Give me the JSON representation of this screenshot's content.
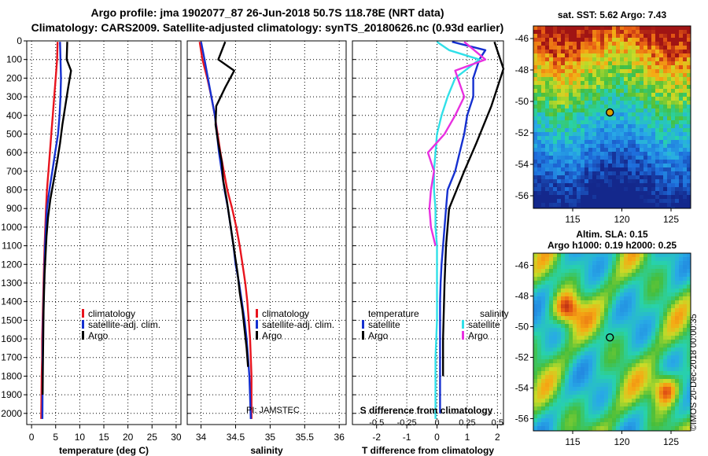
{
  "header": {
    "title_line1": "Argo profile: jma 1902077_87 26-Jun-2018 50.7S 118.78E (NRT data)",
    "title_line2": "Climatology: CARS2009. Satellite-adjusted climatology: synTS_20180626.nc (0.93d earlier)"
  },
  "credit": {
    "pi": "PI: JAMSTEC",
    "imos": "©IMOS 20-Dec-2018 00:00:35"
  },
  "colors": {
    "climatology": "#e8141e",
    "satellite_adj": "#1530d0",
    "argo": "#000000",
    "satellite_s": "#30e0e8",
    "argo_s": "#e830e0"
  },
  "chart_data": [
    {
      "type": "line",
      "id": "temperature",
      "xlabel": "temperature (deg C)",
      "ylabel": "",
      "xlim": [
        -1,
        31
      ],
      "ylim": [
        2060,
        0
      ],
      "xticks": [
        "0",
        "5",
        "10",
        "15",
        "20",
        "25",
        "30"
      ],
      "xtick_values": [
        0,
        5,
        10,
        15,
        20,
        25,
        30
      ],
      "yticks": [
        0,
        100,
        200,
        300,
        400,
        500,
        600,
        700,
        800,
        900,
        1000,
        1100,
        1200,
        1300,
        1400,
        1500,
        1600,
        1700,
        1800,
        1900,
        2000
      ],
      "grid": true,
      "legend_position": "bottom-right",
      "series": [
        {
          "name": "climatology",
          "color_key": "climatology",
          "x": [
            5.4,
            5.3,
            5.0,
            4.7,
            4.4,
            4.1,
            3.8,
            3.5,
            3.2,
            3.0,
            2.85,
            2.7,
            2.6,
            2.5,
            2.4,
            2.3,
            2.2,
            2.2,
            2.1,
            2.0
          ],
          "y": [
            5,
            100,
            200,
            300,
            400,
            500,
            600,
            700,
            800,
            900,
            1000,
            1100,
            1200,
            1300,
            1400,
            1500,
            1600,
            1700,
            1800,
            2030
          ]
        },
        {
          "name": "satellite-adj. clim.",
          "color_key": "satellite_adj",
          "x": [
            5.9,
            6.0,
            6.1,
            6.0,
            5.8,
            5.5,
            4.9,
            4.3,
            3.7,
            3.2,
            3.0,
            2.8,
            2.7,
            2.6,
            2.5,
            2.4,
            2.35,
            2.3,
            2.3,
            2.25
          ],
          "y": [
            5,
            100,
            200,
            300,
            400,
            500,
            600,
            700,
            800,
            900,
            1000,
            1100,
            1200,
            1300,
            1400,
            1500,
            1600,
            1700,
            1800,
            2030
          ]
        },
        {
          "name": "Argo",
          "color_key": "argo",
          "x": [
            7.4,
            7.3,
            8.2,
            7.6,
            7.0,
            6.4,
            5.9,
            5.3,
            4.6,
            3.9,
            3.4,
            3.1,
            2.9,
            2.7,
            2.6,
            2.5,
            2.45,
            2.4,
            2.35,
            2.3
          ],
          "y": [
            5,
            100,
            160,
            250,
            350,
            450,
            550,
            650,
            750,
            850,
            950,
            1050,
            1150,
            1250,
            1350,
            1450,
            1550,
            1650,
            1750,
            1900
          ]
        }
      ]
    },
    {
      "type": "line",
      "id": "salinity",
      "xlabel": "salinity",
      "xlim": [
        33.8,
        36.1
      ],
      "ylim": [
        2060,
        0
      ],
      "xticks": [
        "34",
        "34.5",
        "35",
        "35.5",
        "36"
      ],
      "xtick_values": [
        34,
        34.5,
        35,
        35.5,
        36
      ],
      "grid": true,
      "legend_position": "bottom-right",
      "series": [
        {
          "name": "climatology",
          "color_key": "climatology",
          "x": [
            33.98,
            34.02,
            34.09,
            34.15,
            34.2,
            34.24,
            34.28,
            34.33,
            34.38,
            34.45,
            34.51,
            34.56,
            34.6,
            34.64,
            34.67,
            34.69,
            34.71,
            34.72,
            34.73,
            34.73
          ],
          "y": [
            5,
            100,
            200,
            300,
            400,
            500,
            600,
            700,
            800,
            900,
            1000,
            1100,
            1200,
            1300,
            1400,
            1500,
            1600,
            1700,
            1800,
            2030
          ]
        },
        {
          "name": "satellite-adj. clim.",
          "color_key": "satellite_adj",
          "x": [
            34.0,
            34.05,
            34.1,
            34.15,
            34.2,
            34.23,
            34.26,
            34.3,
            34.34,
            34.39,
            34.43,
            34.47,
            34.5,
            34.55,
            34.59,
            34.63,
            34.66,
            34.68,
            34.7,
            34.72
          ],
          "y": [
            5,
            100,
            200,
            300,
            400,
            500,
            600,
            700,
            800,
            900,
            1000,
            1100,
            1200,
            1300,
            1400,
            1500,
            1600,
            1700,
            1800,
            2030
          ]
        },
        {
          "name": "Argo",
          "color_key": "argo",
          "x": [
            34.35,
            34.25,
            34.48,
            34.35,
            34.22,
            34.21,
            34.25,
            34.3,
            34.32,
            34.37,
            34.41,
            34.45,
            34.49,
            34.53,
            34.56,
            34.6,
            34.63,
            34.66,
            34.68
          ],
          "y": [
            5,
            100,
            160,
            250,
            350,
            450,
            550,
            650,
            750,
            850,
            950,
            1050,
            1150,
            1250,
            1350,
            1450,
            1550,
            1650,
            1750
          ]
        }
      ]
    },
    {
      "type": "line",
      "id": "difference",
      "xlabel": "T difference from climatology",
      "xlabel2": "S difference from climatology",
      "xlim": [
        -2.8,
        2.2
      ],
      "ylim": [
        2060,
        0
      ],
      "xticks": [
        "-2",
        "-1",
        "0",
        "1",
        "2"
      ],
      "xtick_values": [
        -2,
        -1,
        0,
        1,
        2
      ],
      "xticks2": [
        "-0.5",
        "-0.25",
        "0",
        "0.25",
        "0.5"
      ],
      "xtick2_values": [
        -0.5,
        -0.25,
        0,
        0.25,
        0.5
      ],
      "grid": true,
      "legend": {
        "left_header": "temperature",
        "right_header": "salinity"
      },
      "series": [
        {
          "name": "satellite",
          "group": "temperature",
          "color_key": "satellite_adj",
          "x": [
            0.5,
            1.6,
            1.4,
            1.2,
            1.2,
            1.0,
            0.9,
            0.75,
            0.6,
            0.35,
            0.3,
            0.25,
            0.2,
            0.15,
            0.12,
            0.1,
            0.1,
            0.1,
            0.1,
            0.1
          ],
          "y": [
            5,
            50,
            100,
            200,
            300,
            400,
            500,
            600,
            700,
            800,
            900,
            1000,
            1100,
            1200,
            1300,
            1400,
            1500,
            1700,
            1900,
            2000
          ]
        },
        {
          "name": "Argo",
          "group": "temperature",
          "color_key": "argo",
          "x": [
            1.9,
            2.2,
            2.1,
            1.8,
            1.3,
            0.9,
            0.4,
            0.3,
            0.25,
            0.2,
            0.2
          ],
          "y": [
            5,
            150,
            200,
            350,
            550,
            700,
            900,
            1100,
            1300,
            1600,
            1800
          ]
        },
        {
          "name": "satellite",
          "group": "salinity",
          "color_key": "satellite_s",
          "x": [
            0.0,
            0.4,
            1.4,
            0.6,
            0.35,
            0.15,
            0.0,
            -0.05,
            -0.1,
            -0.1,
            -0.05,
            -0.05,
            0.0,
            0.0,
            0.0,
            0.0,
            0.0,
            -0.05,
            -0.05,
            -0.05
          ],
          "y": [
            5,
            50,
            100,
            200,
            300,
            400,
            500,
            600,
            700,
            800,
            900,
            1000,
            1100,
            1200,
            1300,
            1400,
            1500,
            1700,
            1900,
            2030
          ]
        },
        {
          "name": "Argo",
          "group": "salinity",
          "color_key": "argo_s",
          "x": [
            0.9,
            1.6,
            0.6,
            0.9,
            0.6,
            0.25,
            -0.3,
            -0.1,
            -0.2,
            -0.25,
            -0.2,
            -0.05
          ],
          "y": [
            5,
            100,
            160,
            300,
            400,
            500,
            600,
            700,
            800,
            900,
            1000,
            1100
          ]
        }
      ]
    }
  ],
  "maps": [
    {
      "id": "sst-map",
      "title": "sat. SST: 5.62 Argo: 7.43",
      "subtitle": "",
      "xticks": [
        "115",
        "120",
        "125"
      ],
      "yticks": [
        "-46",
        "-48",
        "-50",
        "-52",
        "-54",
        "-56"
      ],
      "xtick_values": [
        115,
        120,
        125
      ],
      "ytick_values": [
        -46,
        -48,
        -50,
        -52,
        -54,
        -56
      ],
      "xlim": [
        111,
        127
      ],
      "ylim": [
        -56.8,
        -45.2
      ],
      "marker": [
        118.78,
        -50.7
      ]
    },
    {
      "id": "sla-map",
      "title": "Altim. SLA: 0.15",
      "subtitle": "Argo h1000: 0.19 h2000: 0.25",
      "xticks": [
        "115",
        "120",
        "125"
      ],
      "yticks": [
        "-46",
        "-48",
        "-50",
        "-52",
        "-54",
        "-56"
      ],
      "xtick_values": [
        115,
        120,
        125
      ],
      "ytick_values": [
        -46,
        -48,
        -50,
        -52,
        -54,
        -56
      ],
      "xlim": [
        111,
        127
      ],
      "ylim": [
        -56.8,
        -45.2
      ],
      "marker": [
        118.78,
        -50.7
      ]
    }
  ]
}
